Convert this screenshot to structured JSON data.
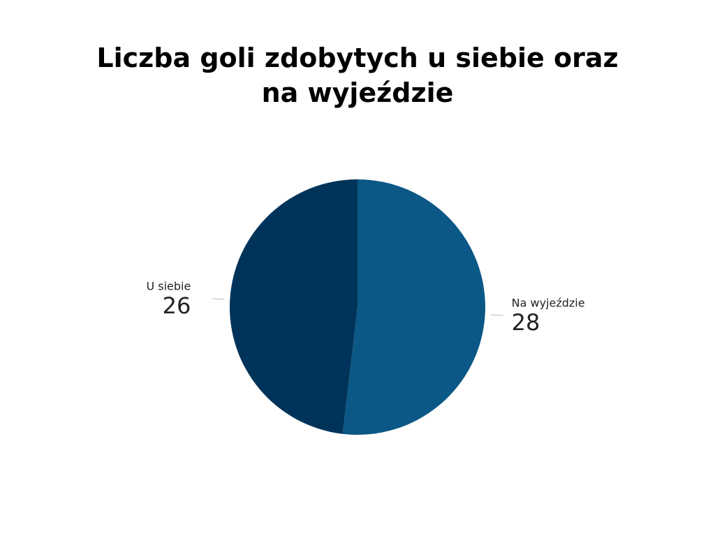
{
  "chart_data": {
    "type": "pie",
    "title": "Liczba goli zdobytych u siebie oraz na wyjeździe",
    "categories": [
      "Na wyjeździe",
      "U siebie"
    ],
    "values": [
      28,
      26
    ],
    "colors": [
      "#0b5886",
      "#003359"
    ]
  }
}
